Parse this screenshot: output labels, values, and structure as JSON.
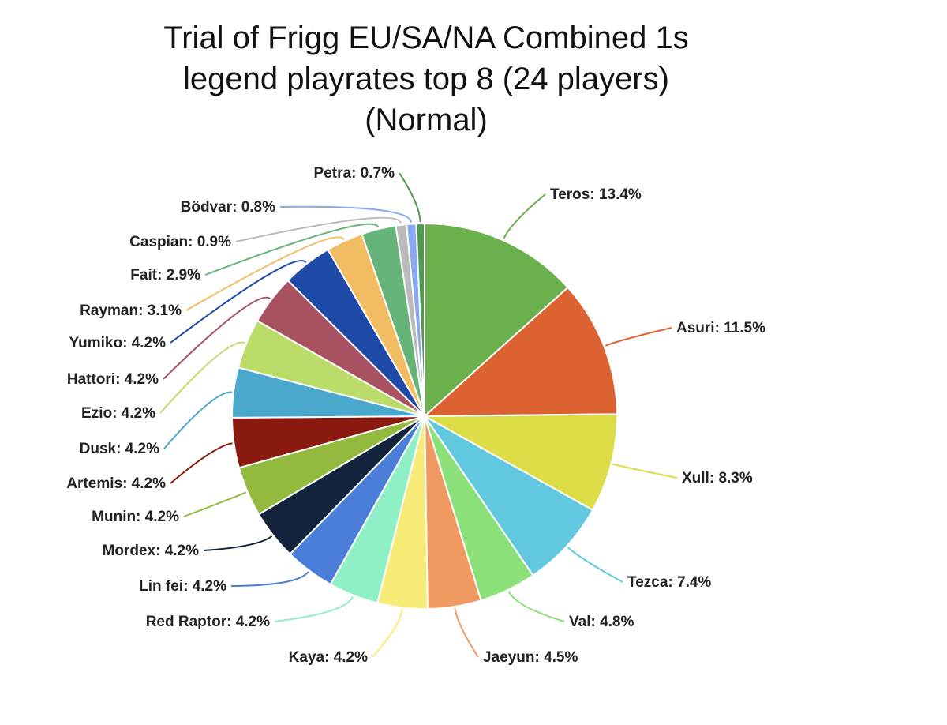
{
  "chart_data": {
    "type": "pie",
    "title_lines": [
      "Trial of Frigg EU/SA/NA Combined 1s",
      "legend playrates top 8 (24 players)",
      "(Normal)"
    ],
    "slices": [
      {
        "label": "Teros: 13.4%",
        "name": "Teros",
        "value": 13.4,
        "color": "#6ab04c"
      },
      {
        "label": "Asuri: 11.5%",
        "name": "Asuri",
        "value": 11.5,
        "color": "#dc6232"
      },
      {
        "label": "Xull: 8.3%",
        "name": "Xull",
        "value": 8.3,
        "color": "#dddd47"
      },
      {
        "label": "Tezca: 7.4%",
        "name": "Tezca",
        "value": 7.4,
        "color": "#62c8e0"
      },
      {
        "label": "Val: 4.8%",
        "name": "Val",
        "value": 4.8,
        "color": "#8ce07a"
      },
      {
        "label": "Jaeyun: 4.5%",
        "name": "Jaeyun",
        "value": 4.5,
        "color": "#f09a62"
      },
      {
        "label": "Kaya: 4.2%",
        "name": "Kaya",
        "value": 4.2,
        "color": "#f8ec78"
      },
      {
        "label": "Red Raptor: 4.2%",
        "name": "Red Raptor",
        "value": 4.2,
        "color": "#8ef0c4"
      },
      {
        "label": "Lin fei: 4.2%",
        "name": "Lin fei",
        "value": 4.2,
        "color": "#4a7ed8"
      },
      {
        "label": "Mordex: 4.2%",
        "name": "Mordex",
        "value": 4.2,
        "color": "#12233b"
      },
      {
        "label": "Munin: 4.2%",
        "name": "Munin",
        "value": 4.2,
        "color": "#94b93f"
      },
      {
        "label": "Artemis: 4.2%",
        "name": "Artemis",
        "value": 4.2,
        "color": "#8a1a10"
      },
      {
        "label": "Dusk: 4.2%",
        "name": "Dusk",
        "value": 4.2,
        "color": "#4aa8cc"
      },
      {
        "label": "Ezio: 4.2%",
        "name": "Ezio",
        "value": 4.2,
        "color": "#bcdc6a"
      },
      {
        "label": "Hattori: 4.2%",
        "name": "Hattori",
        "value": 4.2,
        "color": "#a85262"
      },
      {
        "label": "Yumiko: 4.2%",
        "name": "Yumiko",
        "value": 4.2,
        "color": "#1f4aa8"
      },
      {
        "label": "Rayman: 3.1%",
        "name": "Rayman",
        "value": 3.1,
        "color": "#f2bd62"
      },
      {
        "label": "Fait: 2.9%",
        "name": "Fait",
        "value": 2.9,
        "color": "#66b47a"
      },
      {
        "label": "Caspian: 0.9%",
        "name": "Caspian",
        "value": 0.9,
        "color": "#bbbbbb"
      },
      {
        "label": "Bödvar: 0.8%",
        "name": "Bödvar",
        "value": 0.8,
        "color": "#8aa8f0"
      },
      {
        "label": "Petra: 0.7%",
        "name": "Petra",
        "value": 0.7,
        "color": "#4e9a4e"
      }
    ]
  }
}
